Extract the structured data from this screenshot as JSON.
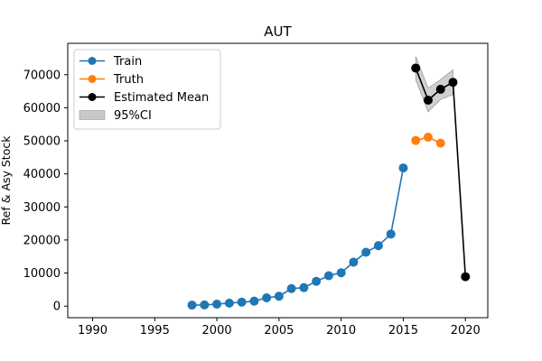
{
  "chart_data": {
    "type": "line",
    "title": "AUT",
    "xlabel": "",
    "ylabel": "Ref & Asy Stock",
    "xlim": [
      1988,
      2021.8
    ],
    "ylim": [
      -3500,
      79500
    ],
    "xticks": [
      1990,
      1995,
      2000,
      2005,
      2010,
      2015,
      2020
    ],
    "yticks": [
      0,
      10000,
      20000,
      30000,
      40000,
      50000,
      60000,
      70000
    ],
    "grid": false,
    "legend_position": "upper left",
    "series": [
      {
        "name": "Train",
        "color": "#1f77b4",
        "marker": "circle",
        "x": [
          1998,
          1999,
          2000,
          2001,
          2002,
          2003,
          2004,
          2005,
          2006,
          2007,
          2008,
          2009,
          2010,
          2011,
          2012,
          2013,
          2014,
          2015
        ],
        "y": [
          300,
          350,
          600,
          900,
          1200,
          1500,
          2500,
          3000,
          5300,
          5600,
          7500,
          9200,
          10100,
          13300,
          16300,
          18300,
          21800,
          41800
        ]
      },
      {
        "name": "Truth",
        "color": "#ff7f0e",
        "marker": "circle",
        "x": [
          2016,
          2017,
          2018
        ],
        "y": [
          50100,
          51100,
          49300
        ]
      },
      {
        "name": "Estimated Mean",
        "color": "#000000",
        "marker": "circle",
        "x": [
          2016,
          2017,
          2018,
          2019,
          2020
        ],
        "y": [
          72000,
          62300,
          65600,
          67700,
          8900
        ]
      }
    ],
    "band": {
      "name": "95%CI",
      "color": "#c8c8c8",
      "x": [
        2016,
        2017,
        2018,
        2019
      ],
      "lower": [
        68500,
        58800,
        62500,
        64000
      ],
      "upper": [
        75500,
        66000,
        68500,
        71500
      ]
    }
  }
}
